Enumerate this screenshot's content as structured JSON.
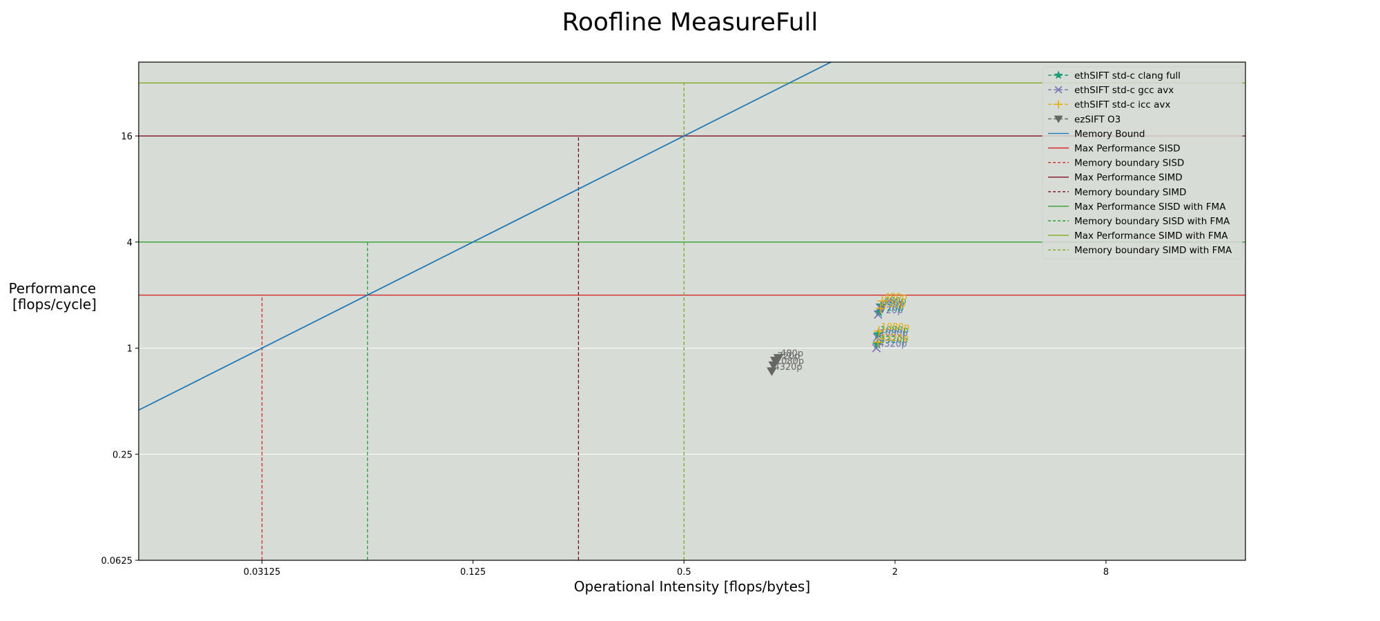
{
  "chart_data": {
    "type": "line",
    "title": "Roofline MeasureFull",
    "xlabel": "Operational Intensity [flops/bytes]",
    "ylabel": [
      "Performance",
      "[flops/cycle]"
    ],
    "xscale": "log2",
    "yscale": "log2",
    "xlim": [
      0.0139,
      20.0
    ],
    "ylim": [
      0.0625,
      42
    ],
    "xticks": [
      {
        "value": 0.03125,
        "label": "0.03125"
      },
      {
        "value": 0.125,
        "label": "0.125"
      },
      {
        "value": 0.5,
        "label": "0.5"
      },
      {
        "value": 2,
        "label": "2"
      },
      {
        "value": 8,
        "label": "8"
      }
    ],
    "yticks": [
      {
        "value": 0.0625,
        "label": "0.0625"
      },
      {
        "value": 0.25,
        "label": "0.25"
      },
      {
        "value": 1,
        "label": "1"
      },
      {
        "value": 4,
        "label": "4"
      },
      {
        "value": 16,
        "label": "16"
      }
    ],
    "grid": "horizontal",
    "background": "#d8dcd6",
    "legend_position": "top-right",
    "memory_bound": {
      "name": "Memory Bound",
      "slope_flops_per_byte": 32,
      "color": "#1f77b4"
    },
    "ceilings": [
      {
        "name": "Max Performance SISD",
        "value": 2,
        "color": "#d62728",
        "boundary_name": "Memory boundary SISD",
        "boundary_x": 0.03125,
        "boundary_color": "#d62728"
      },
      {
        "name": "Max Performance SIMD",
        "value": 16,
        "color": "#7f0f1f",
        "boundary_name": "Memory boundary SIMD",
        "boundary_x": 0.25,
        "boundary_color": "#7f0f1f"
      },
      {
        "name": "Max Performance SISD with FMA",
        "value": 4,
        "color": "#2ca02c",
        "boundary_name": "Memory boundary SISD with FMA",
        "boundary_x": 0.0625,
        "boundary_color": "#2ca02c"
      },
      {
        "name": "Max Performance SIMD with FMA",
        "value": 32,
        "color": "#7cab1e",
        "boundary_name": "Memory boundary SIMD with FMA",
        "boundary_x": 0.5,
        "boundary_color": "#7cab1e"
      }
    ],
    "series": [
      {
        "name": "ethSIFT std-c clang full",
        "color": "#1b9e77",
        "marker": "star",
        "points": [
          {
            "x": 1.83,
            "y": 1.75,
            "label": "480p"
          },
          {
            "x": 1.8,
            "y": 1.6,
            "label": "720p"
          },
          {
            "x": 1.79,
            "y": 1.2,
            "label": "1080p"
          },
          {
            "x": 1.78,
            "y": 1.05,
            "label": "4320p"
          }
        ]
      },
      {
        "name": "ethSIFT std-c gcc avx",
        "color": "#7570b3",
        "marker": "x",
        "points": [
          {
            "x": 1.81,
            "y": 1.7,
            "label": "480p"
          },
          {
            "x": 1.79,
            "y": 1.55,
            "label": "720p"
          },
          {
            "x": 1.78,
            "y": 1.15,
            "label": "1080p"
          },
          {
            "x": 1.77,
            "y": 1.0,
            "label": "4320p"
          }
        ]
      },
      {
        "name": "ethSIFT std-c icc avx",
        "color": "#e6ab02",
        "marker": "plus",
        "points": [
          {
            "x": 1.84,
            "y": 1.85,
            "label": "480p"
          },
          {
            "x": 1.82,
            "y": 1.68,
            "label": "720p"
          },
          {
            "x": 1.8,
            "y": 1.25,
            "label": "1080p"
          },
          {
            "x": 1.79,
            "y": 1.08,
            "label": "4320p"
          }
        ]
      },
      {
        "name": "ezSIFT O3",
        "color": "#666666",
        "marker": "triangle-down",
        "points": [
          {
            "x": 0.93,
            "y": 0.88,
            "label": "480p"
          },
          {
            "x": 0.91,
            "y": 0.85,
            "label": "720p"
          },
          {
            "x": 0.9,
            "y": 0.8,
            "label": "1080p"
          },
          {
            "x": 0.89,
            "y": 0.74,
            "label": "4320p"
          }
        ]
      }
    ],
    "legend_order": [
      "ethSIFT std-c clang full",
      "ethSIFT std-c gcc avx",
      "ethSIFT std-c icc avx",
      "ezSIFT O3",
      "Memory Bound",
      "Max Performance SISD",
      "Memory boundary SISD",
      "Max Performance SIMD",
      "Memory boundary SIMD",
      "Max Performance SISD with FMA",
      "Memory boundary SISD with FMA",
      "Max Performance SIMD with FMA",
      "Memory boundary SIMD with FMA"
    ]
  }
}
